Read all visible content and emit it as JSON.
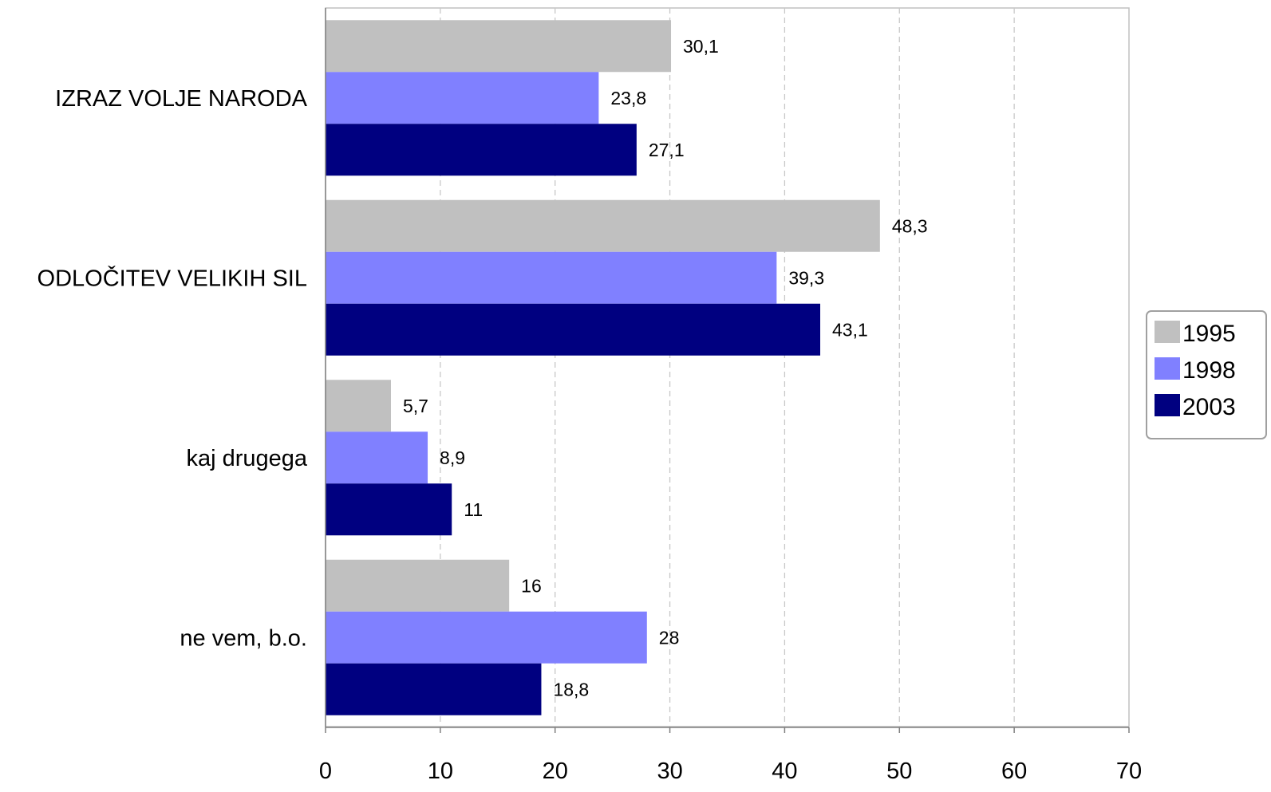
{
  "chart_data": {
    "type": "bar",
    "orientation": "horizontal",
    "categories": [
      "IZRAZ VOLJE NARODA",
      "ODLOČITEV VELIKIH SIL",
      "kaj drugega",
      "ne vem, b.o."
    ],
    "series": [
      {
        "name": "1995",
        "color": "#c0c0c0",
        "values": [
          30.1,
          48.3,
          5.7,
          16
        ]
      },
      {
        "name": "1998",
        "color": "#8080ff",
        "values": [
          23.8,
          39.3,
          8.9,
          28
        ]
      },
      {
        "name": "2003",
        "color": "#000080",
        "values": [
          27.1,
          43.1,
          11,
          18.8
        ]
      }
    ],
    "data_labels": [
      [
        "30,1",
        "48,3",
        "5,7",
        "16"
      ],
      [
        "23,8",
        "39,3",
        "8,9",
        "28"
      ],
      [
        "27,1",
        "43,1",
        "11",
        "18,8"
      ]
    ],
    "xlim": [
      0,
      70
    ],
    "xticks": [
      "0",
      "10",
      "20",
      "30",
      "40",
      "50",
      "60",
      "70"
    ],
    "grid": "vertical dashed",
    "legend_position": "right"
  }
}
